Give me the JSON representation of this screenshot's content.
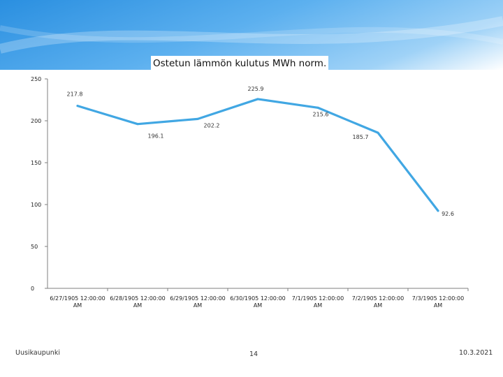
{
  "footer": {
    "left": "Uusikaupunki",
    "center": "14",
    "right": "10.3.2021"
  },
  "colors": {
    "line": "#41a7e3",
    "header_gradient_start": "#2a8fe0",
    "axis": "#7f7f7f"
  },
  "chart_data": {
    "type": "line",
    "title": "Ostetun lämmön kulutus MWh norm.",
    "xlabel": "",
    "ylabel": "",
    "ylim": [
      0,
      250
    ],
    "yticks": [
      0,
      50,
      100,
      150,
      200,
      250
    ],
    "grid": false,
    "categories": [
      "6/27/1905 12:00:00 AM",
      "6/28/1905 12:00:00 AM",
      "6/29/1905 12:00:00 AM",
      "6/30/1905 12:00:00 AM",
      "7/1/1905 12:00:00 AM",
      "7/2/1905 12:00:00 AM",
      "7/3/1905 12:00:00 AM"
    ],
    "series": [
      {
        "values": [
          217.8,
          196.1,
          202.2,
          225.9,
          215.6,
          185.7,
          92.6
        ],
        "data_labels": [
          "217.8",
          "196.1",
          "202.2",
          "225.9",
          "215.6",
          "185.7",
          "92.6"
        ]
      }
    ]
  }
}
